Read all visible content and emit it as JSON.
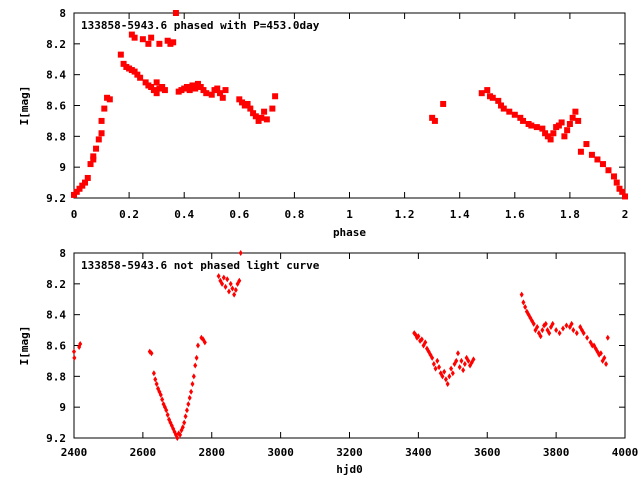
{
  "chart_data": [
    {
      "type": "scatter",
      "title": "133858-5943.6 phased with P=453.0day",
      "xlabel": "phase",
      "ylabel": "I[mag]",
      "xlim": [
        0,
        2
      ],
      "ylim": [
        8,
        9.2
      ],
      "y_inverted": true,
      "x_ticks": [
        "0",
        "0.2",
        "0.4",
        "0.6",
        "0.8",
        "1",
        "1.2",
        "1.4",
        "1.6",
        "1.8",
        "2"
      ],
      "y_ticks": [
        "8",
        "8.2",
        "8.4",
        "8.6",
        "8.8",
        "9",
        "9.2"
      ],
      "grid": false,
      "marker": "plus",
      "color": "#ff0000",
      "series": [
        {
          "x": [
            0.0,
            0.01,
            0.02,
            0.03,
            0.04,
            0.05,
            0.06,
            0.07,
            0.07,
            0.08,
            0.09,
            0.1,
            0.1,
            0.11,
            0.12,
            0.13,
            0.17,
            0.18,
            0.19,
            0.2,
            0.21,
            0.21,
            0.22,
            0.22,
            0.23,
            0.24,
            0.25,
            0.26,
            0.27,
            0.27,
            0.28,
            0.28,
            0.29,
            0.3,
            0.3,
            0.31,
            0.31,
            0.32,
            0.33,
            0.34,
            0.35,
            0.36,
            0.37,
            0.38,
            0.39,
            0.4,
            0.41,
            0.42,
            0.43,
            0.44,
            0.45,
            0.46,
            0.47,
            0.48,
            0.5,
            0.51,
            0.52,
            0.53,
            0.54,
            0.55,
            0.6,
            0.61,
            0.62,
            0.63,
            0.64,
            0.65,
            0.66,
            0.67,
            0.68,
            0.69,
            0.7,
            0.72,
            0.73,
            1.3,
            1.31,
            1.34,
            1.48,
            1.5,
            1.51,
            1.52,
            1.54,
            1.55,
            1.56,
            1.58,
            1.6,
            1.62,
            1.63,
            1.65,
            1.66,
            1.68,
            1.7,
            1.71,
            1.72,
            1.73,
            1.74,
            1.75,
            1.76,
            1.77,
            1.78,
            1.79,
            1.8,
            1.81,
            1.82,
            1.83,
            1.84,
            1.86,
            1.88,
            1.9,
            1.92,
            1.94,
            1.96,
            1.97,
            1.98,
            1.99,
            2.0
          ],
          "y": [
            9.18,
            9.16,
            9.14,
            9.12,
            9.1,
            9.07,
            8.98,
            8.93,
            8.95,
            8.88,
            8.82,
            8.78,
            8.7,
            8.62,
            8.55,
            8.56,
            8.27,
            8.33,
            8.35,
            8.36,
            8.14,
            8.37,
            8.38,
            8.16,
            8.4,
            8.42,
            8.17,
            8.45,
            8.2,
            8.47,
            8.48,
            8.16,
            8.5,
            8.52,
            8.45,
            8.49,
            8.2,
            8.48,
            8.5,
            8.18,
            8.2,
            8.19,
            8.0,
            8.51,
            8.5,
            8.49,
            8.48,
            8.5,
            8.47,
            8.49,
            8.46,
            8.48,
            8.5,
            8.52,
            8.53,
            8.5,
            8.49,
            8.52,
            8.55,
            8.5,
            8.56,
            8.58,
            8.6,
            8.59,
            8.62,
            8.65,
            8.67,
            8.7,
            8.68,
            8.64,
            8.69,
            8.62,
            8.54,
            8.68,
            8.7,
            8.59,
            8.52,
            8.5,
            8.54,
            8.55,
            8.57,
            8.6,
            8.62,
            8.64,
            8.66,
            8.68,
            8.7,
            8.72,
            8.73,
            8.74,
            8.75,
            8.78,
            8.8,
            8.82,
            8.78,
            8.74,
            8.73,
            8.71,
            8.8,
            8.76,
            8.72,
            8.68,
            8.64,
            8.7,
            8.9,
            8.85,
            8.92,
            8.95,
            8.98,
            9.02,
            9.06,
            9.1,
            9.14,
            9.16,
            9.19
          ]
        }
      ]
    },
    {
      "type": "scatter",
      "title": "133858-5943.6 not phased light curve",
      "xlabel": "hjd0",
      "ylabel": "I[mag]",
      "xlim": [
        2400,
        4000
      ],
      "ylim": [
        8,
        9.2
      ],
      "y_inverted": true,
      "x_ticks": [
        "2400",
        "2600",
        "2800",
        "3000",
        "3200",
        "3400",
        "3600",
        "3800",
        "4000"
      ],
      "y_ticks": [
        "8",
        "8.2",
        "8.4",
        "8.6",
        "8.8",
        "9",
        "9.2"
      ],
      "grid": false,
      "marker": "diamond",
      "color": "#ff0000",
      "series": [
        {
          "x": [
            2400,
            2401,
            2415,
            2418,
            2620,
            2625,
            2632,
            2636,
            2640,
            2644,
            2648,
            2652,
            2656,
            2660,
            2664,
            2668,
            2672,
            2676,
            2680,
            2684,
            2688,
            2692,
            2696,
            2700,
            2704,
            2708,
            2712,
            2716,
            2720,
            2724,
            2728,
            2732,
            2736,
            2740,
            2744,
            2748,
            2752,
            2756,
            2760,
            2770,
            2775,
            2780,
            2820,
            2825,
            2830,
            2835,
            2840,
            2845,
            2850,
            2855,
            2860,
            2865,
            2870,
            2875,
            2880,
            2884,
            3388,
            3392,
            3396,
            3400,
            3405,
            3410,
            3415,
            3420,
            3425,
            3430,
            3435,
            3440,
            3445,
            3450,
            3455,
            3460,
            3465,
            3470,
            3475,
            3480,
            3485,
            3490,
            3495,
            3500,
            3505,
            3510,
            3515,
            3520,
            3525,
            3530,
            3535,
            3540,
            3545,
            3550,
            3555,
            3560,
            3700,
            3705,
            3710,
            3715,
            3720,
            3725,
            3730,
            3735,
            3740,
            3745,
            3750,
            3755,
            3760,
            3765,
            3770,
            3775,
            3780,
            3785,
            3790,
            3800,
            3810,
            3820,
            3830,
            3840,
            3845,
            3850,
            3860,
            3870,
            3875,
            3880,
            3890,
            3900,
            3905,
            3910,
            3915,
            3920,
            3925,
            3930,
            3935,
            3940,
            3945,
            3950
          ],
          "y": [
            8.64,
            8.68,
            8.61,
            8.59,
            8.64,
            8.65,
            8.78,
            8.82,
            8.85,
            8.88,
            8.9,
            8.92,
            8.95,
            8.98,
            9.0,
            9.02,
            9.05,
            9.08,
            9.1,
            9.12,
            9.14,
            9.16,
            9.18,
            9.2,
            9.17,
            9.18,
            9.15,
            9.13,
            9.1,
            9.06,
            9.02,
            8.98,
            8.94,
            8.9,
            8.85,
            8.8,
            8.73,
            8.68,
            8.6,
            8.55,
            8.56,
            8.58,
            8.15,
            8.18,
            8.2,
            8.16,
            8.22,
            8.17,
            8.25,
            8.2,
            8.23,
            8.27,
            8.24,
            8.2,
            8.18,
            8.0,
            8.52,
            8.53,
            8.55,
            8.54,
            8.57,
            8.56,
            8.6,
            8.58,
            8.62,
            8.64,
            8.66,
            8.68,
            8.72,
            8.75,
            8.7,
            8.74,
            8.78,
            8.8,
            8.77,
            8.82,
            8.85,
            8.8,
            8.75,
            8.78,
            8.72,
            8.7,
            8.65,
            8.74,
            8.7,
            8.76,
            8.72,
            8.68,
            8.7,
            8.73,
            8.71,
            8.69,
            8.27,
            8.32,
            8.35,
            8.38,
            8.4,
            8.42,
            8.44,
            8.46,
            8.5,
            8.48,
            8.52,
            8.54,
            8.5,
            8.47,
            8.46,
            8.5,
            8.52,
            8.48,
            8.46,
            8.5,
            8.52,
            8.49,
            8.47,
            8.48,
            8.46,
            8.5,
            8.52,
            8.48,
            8.5,
            8.52,
            8.55,
            8.58,
            8.6,
            8.6,
            8.62,
            8.64,
            8.66,
            8.65,
            8.7,
            8.68,
            8.72,
            8.55
          ]
        }
      ]
    }
  ]
}
